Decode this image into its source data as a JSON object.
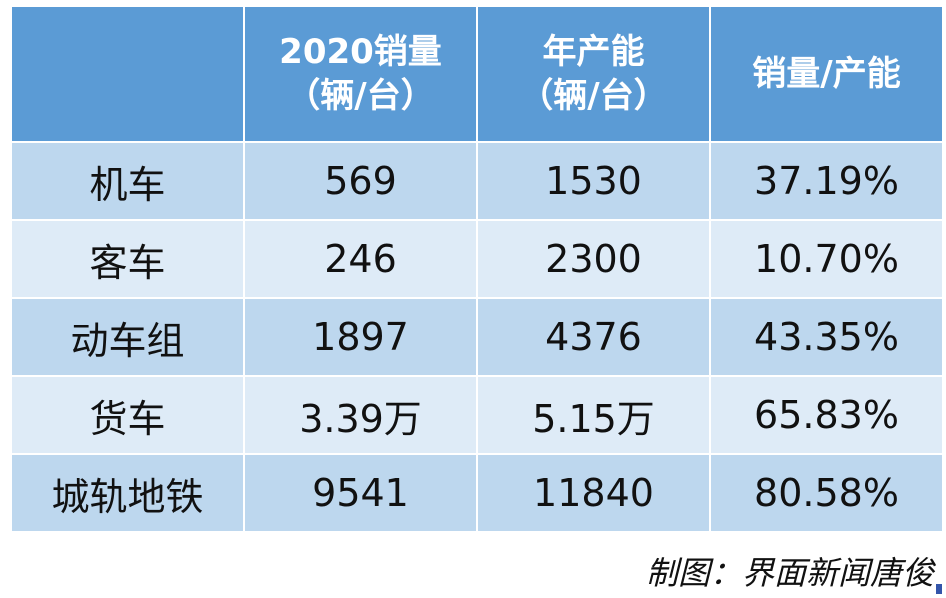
{
  "chart_data": {
    "type": "table",
    "columns": [
      {
        "lines": [
          ""
        ]
      },
      {
        "lines": [
          "2020销量",
          "（辆/台）"
        ]
      },
      {
        "lines": [
          "年产能",
          "（辆/台）"
        ]
      },
      {
        "lines": [
          "销量/产能"
        ]
      }
    ],
    "rows": [
      {
        "category": "机车",
        "sales": "569",
        "capacity": "1530",
        "ratio": "37.19%"
      },
      {
        "category": "客车",
        "sales": "246",
        "capacity": "2300",
        "ratio": "10.70%"
      },
      {
        "category": "动车组",
        "sales": "1897",
        "capacity": "4376",
        "ratio": "43.35%"
      },
      {
        "category": "货车",
        "sales": "3.39万",
        "capacity": "5.15万",
        "ratio": "65.83%"
      },
      {
        "category": "城轨地铁",
        "sales": "9541",
        "capacity": "11840",
        "ratio": "80.58%"
      }
    ],
    "colors": {
      "header": "#5b9bd5",
      "row_odd": "#bdd7ee",
      "row_even": "#deebf7"
    }
  },
  "credit": "制图：界面新闻唐俊"
}
